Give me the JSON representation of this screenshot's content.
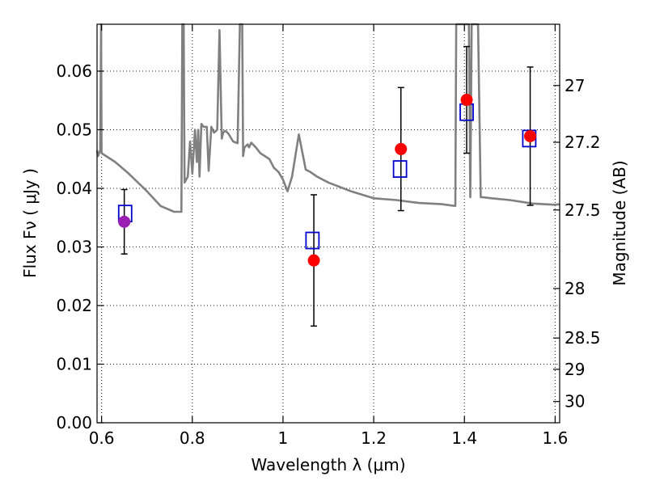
{
  "chart_data": {
    "type": "scatter",
    "xlabel": "Wavelength  λ (μm)",
    "ylabel": "Flux  Fν  ( μJy )",
    "y2label": "Magnitude (AB)",
    "xlim": [
      0.59,
      1.61
    ],
    "ylim": [
      0.0,
      0.068
    ],
    "grid": true,
    "x_ticks": [
      0.6,
      0.8,
      1.0,
      1.2,
      1.4,
      1.6
    ],
    "x_tick_labels": [
      "0.6",
      "0.8",
      "1",
      "1.2",
      "1.4",
      "1.6"
    ],
    "y_ticks": [
      0.0,
      0.01,
      0.02,
      0.03,
      0.04,
      0.05,
      0.06
    ],
    "y_tick_labels": [
      "0.00",
      "0.01",
      "0.02",
      "0.03",
      "0.04",
      "0.05",
      "0.06"
    ],
    "mag_ticks": [
      27,
      27.2,
      27.5,
      28,
      28.5,
      29,
      30
    ],
    "mag_tick_labels": [
      "27",
      "27.2",
      "27.5",
      "28",
      "28.5",
      "29",
      "30"
    ],
    "colors": {
      "model": "#808080",
      "observed": "#ff0000",
      "observed_first": "#9a1fb2",
      "model_box": "#0000cc",
      "error": "#000000"
    },
    "model_spectrum": {
      "x": [
        0.59,
        0.592,
        0.597,
        0.599,
        0.6,
        0.61,
        0.63,
        0.66,
        0.7,
        0.73,
        0.76,
        0.776,
        0.778,
        0.781,
        0.783,
        0.79,
        0.795,
        0.8,
        0.806,
        0.81,
        0.813,
        0.816,
        0.82,
        0.825,
        0.832,
        0.836,
        0.842,
        0.848,
        0.855,
        0.86,
        0.865,
        0.868,
        0.872,
        0.875,
        0.88,
        0.89,
        0.9,
        0.905,
        0.91,
        0.912,
        0.915,
        0.918,
        0.922,
        0.925,
        0.93,
        0.94,
        0.95,
        0.96,
        0.97,
        0.98,
        0.99,
        1.0,
        1.01,
        1.02,
        1.035,
        1.05,
        1.06,
        1.075,
        1.1,
        1.15,
        1.2,
        1.25,
        1.3,
        1.35,
        1.38,
        1.382,
        1.39,
        1.395,
        1.4,
        1.405,
        1.41,
        1.413,
        1.416,
        1.42,
        1.425,
        1.43,
        1.436,
        1.44,
        1.46,
        1.5,
        1.55,
        1.6,
        1.61
      ],
      "y": [
        0.0465,
        0.0455,
        0.0465,
        0.068,
        0.046,
        0.0455,
        0.0445,
        0.0425,
        0.0395,
        0.037,
        0.036,
        0.036,
        0.068,
        0.068,
        0.041,
        0.042,
        0.048,
        0.0425,
        0.05,
        0.0445,
        0.05,
        0.042,
        0.051,
        0.0505,
        0.0505,
        0.043,
        0.0505,
        0.0495,
        0.05,
        0.067,
        0.0485,
        0.0495,
        0.0498,
        0.0497,
        0.0493,
        0.048,
        0.0477,
        0.068,
        0.068,
        0.0455,
        0.047,
        0.0472,
        0.0475,
        0.047,
        0.0478,
        0.047,
        0.046,
        0.0455,
        0.045,
        0.0435,
        0.0428,
        0.0415,
        0.0395,
        0.042,
        0.0492,
        0.0432,
        0.0428,
        0.042,
        0.041,
        0.0395,
        0.0383,
        0.038,
        0.0375,
        0.0373,
        0.037,
        0.068,
        0.068,
        0.068,
        0.068,
        0.068,
        0.068,
        0.0385,
        0.068,
        0.068,
        0.068,
        0.068,
        0.0385,
        0.0385,
        0.0383,
        0.038,
        0.0374,
        0.0372,
        0.0373
      ]
    },
    "observed_points": [
      {
        "x": 0.65,
        "y": 0.0343,
        "err": 0.0055
      },
      {
        "x": 1.068,
        "y": 0.0277,
        "err": 0.0112
      },
      {
        "x": 1.26,
        "y": 0.0467,
        "err": 0.0105
      },
      {
        "x": 1.405,
        "y": 0.0551,
        "err": 0.0091
      },
      {
        "x": 1.545,
        "y": 0.0489,
        "err": 0.0118
      }
    ],
    "model_points": [
      {
        "x": 0.652,
        "y": 0.0357
      },
      {
        "x": 1.065,
        "y": 0.0311
      },
      {
        "x": 1.258,
        "y": 0.0433
      },
      {
        "x": 1.405,
        "y": 0.053
      },
      {
        "x": 1.543,
        "y": 0.0485
      }
    ]
  }
}
